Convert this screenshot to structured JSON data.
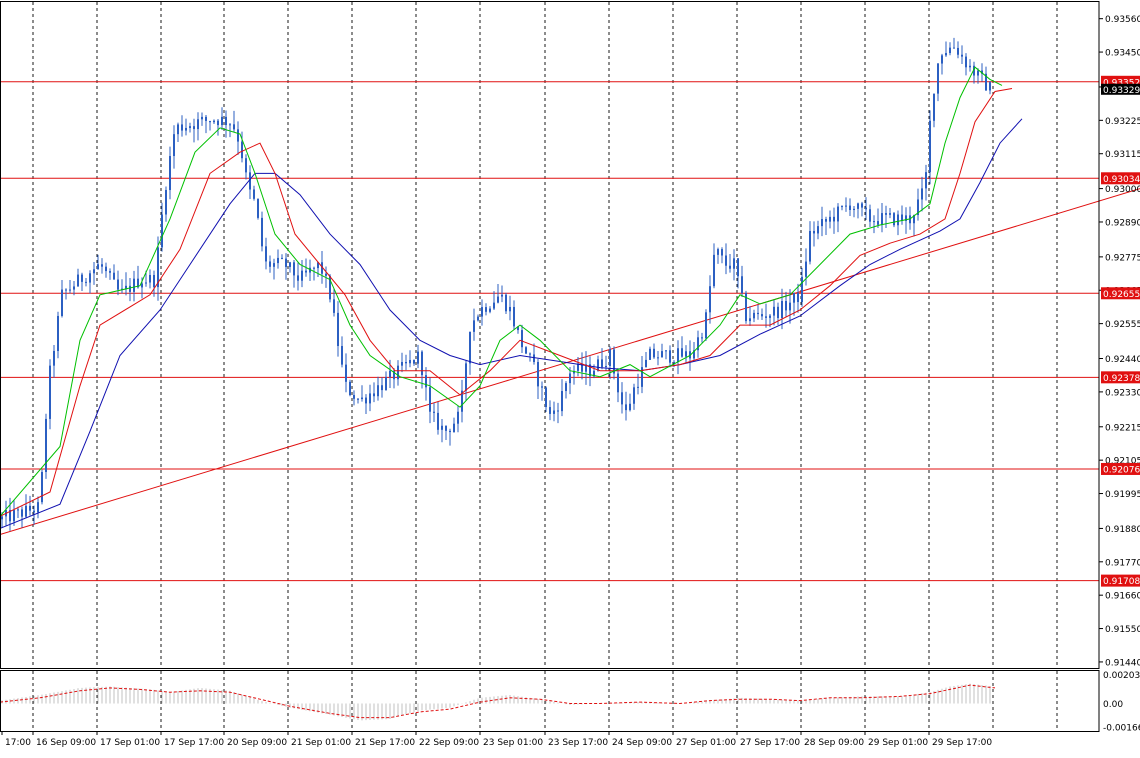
{
  "chart_data": {
    "type": "candlestick",
    "main_panel": {
      "ylim": [
        0.9142,
        0.93615
      ],
      "price_ticks": [
        "0.93560",
        "0.93450",
        "0.93335",
        "0.93225",
        "0.93115",
        "0.93000",
        "0.92890",
        "0.92775",
        "0.92665",
        "0.92555",
        "0.92440",
        "0.92330",
        "0.92215",
        "0.92105",
        "0.91995",
        "0.91880",
        "0.91770",
        "0.91660",
        "0.91550",
        "0.91440"
      ],
      "current_price": "0.93329",
      "levels": [
        "0.93352",
        "0.93034",
        "0.92655",
        "0.92378",
        "0.92076",
        "0.91708"
      ],
      "trendline": [
        [
          0,
          0.9186
        ],
        [
          1140,
          0.93
        ]
      ],
      "price_path": [
        [
          0,
          0.9191
        ],
        [
          40,
          0.9195
        ],
        [
          48,
          0.9235
        ],
        [
          62,
          0.9265
        ],
        [
          80,
          0.927
        ],
        [
          100,
          0.9275
        ],
        [
          120,
          0.9265
        ],
        [
          140,
          0.927
        ],
        [
          155,
          0.927
        ],
        [
          165,
          0.93
        ],
        [
          175,
          0.932
        ],
        [
          200,
          0.9322
        ],
        [
          215,
          0.9323
        ],
        [
          232,
          0.9322
        ],
        [
          240,
          0.9315
        ],
        [
          248,
          0.93
        ],
        [
          255,
          0.9295
        ],
        [
          265,
          0.9275
        ],
        [
          285,
          0.9275
        ],
        [
          300,
          0.927
        ],
        [
          320,
          0.9275
        ],
        [
          330,
          0.9265
        ],
        [
          345,
          0.9235
        ],
        [
          360,
          0.923
        ],
        [
          380,
          0.9235
        ],
        [
          400,
          0.924
        ],
        [
          420,
          0.9245
        ],
        [
          430,
          0.9225
        ],
        [
          445,
          0.922
        ],
        [
          460,
          0.9225
        ],
        [
          470,
          0.9255
        ],
        [
          480,
          0.926
        ],
        [
          500,
          0.9265
        ],
        [
          510,
          0.926
        ],
        [
          520,
          0.925
        ],
        [
          535,
          0.924
        ],
        [
          550,
          0.9225
        ],
        [
          560,
          0.923
        ],
        [
          570,
          0.924
        ],
        [
          590,
          0.924
        ],
        [
          610,
          0.9245
        ],
        [
          625,
          0.9225
        ],
        [
          635,
          0.9235
        ],
        [
          650,
          0.9245
        ],
        [
          670,
          0.9245
        ],
        [
          690,
          0.9245
        ],
        [
          705,
          0.9255
        ],
        [
          715,
          0.928
        ],
        [
          725,
          0.9275
        ],
        [
          735,
          0.9275
        ],
        [
          745,
          0.9258
        ],
        [
          760,
          0.9258
        ],
        [
          780,
          0.926
        ],
        [
          800,
          0.9265
        ],
        [
          810,
          0.9285
        ],
        [
          830,
          0.929
        ],
        [
          850,
          0.9295
        ],
        [
          870,
          0.929
        ],
        [
          890,
          0.929
        ],
        [
          910,
          0.929
        ],
        [
          925,
          0.93
        ],
        [
          932,
          0.933
        ],
        [
          940,
          0.9345
        ],
        [
          955,
          0.9347
        ],
        [
          965,
          0.9342
        ],
        [
          975,
          0.9338
        ],
        [
          990,
          0.9333
        ]
      ],
      "ma_fast": [
        [
          0,
          0.9192
        ],
        [
          60,
          0.9215
        ],
        [
          80,
          0.925
        ],
        [
          100,
          0.9265
        ],
        [
          140,
          0.9268
        ],
        [
          170,
          0.929
        ],
        [
          195,
          0.9312
        ],
        [
          220,
          0.932
        ],
        [
          240,
          0.9318
        ],
        [
          255,
          0.9305
        ],
        [
          275,
          0.9285
        ],
        [
          300,
          0.9275
        ],
        [
          330,
          0.927
        ],
        [
          350,
          0.9255
        ],
        [
          370,
          0.9245
        ],
        [
          400,
          0.9238
        ],
        [
          430,
          0.9235
        ],
        [
          460,
          0.9228
        ],
        [
          480,
          0.9235
        ],
        [
          500,
          0.925
        ],
        [
          520,
          0.9255
        ],
        [
          540,
          0.925
        ],
        [
          570,
          0.924
        ],
        [
          600,
          0.9238
        ],
        [
          630,
          0.9242
        ],
        [
          650,
          0.9238
        ],
        [
          690,
          0.9245
        ],
        [
          720,
          0.9255
        ],
        [
          740,
          0.9265
        ],
        [
          760,
          0.9262
        ],
        [
          790,
          0.9265
        ],
        [
          820,
          0.9275
        ],
        [
          850,
          0.9285
        ],
        [
          880,
          0.9288
        ],
        [
          910,
          0.929
        ],
        [
          930,
          0.9295
        ],
        [
          945,
          0.9315
        ],
        [
          960,
          0.933
        ],
        [
          975,
          0.934
        ],
        [
          990,
          0.9336
        ],
        [
          1002,
          0.9334
        ]
      ],
      "ma_mid": [
        [
          0,
          0.9192
        ],
        [
          50,
          0.92
        ],
        [
          80,
          0.9235
        ],
        [
          100,
          0.9255
        ],
        [
          150,
          0.9265
        ],
        [
          180,
          0.928
        ],
        [
          210,
          0.9305
        ],
        [
          240,
          0.9312
        ],
        [
          260,
          0.9315
        ],
        [
          275,
          0.9305
        ],
        [
          295,
          0.9285
        ],
        [
          320,
          0.9275
        ],
        [
          345,
          0.9265
        ],
        [
          370,
          0.925
        ],
        [
          395,
          0.924
        ],
        [
          430,
          0.924
        ],
        [
          460,
          0.9232
        ],
        [
          490,
          0.924
        ],
        [
          520,
          0.925
        ],
        [
          560,
          0.9245
        ],
        [
          600,
          0.924
        ],
        [
          640,
          0.924
        ],
        [
          680,
          0.9242
        ],
        [
          710,
          0.9245
        ],
        [
          740,
          0.9255
        ],
        [
          770,
          0.9255
        ],
        [
          800,
          0.926
        ],
        [
          830,
          0.9268
        ],
        [
          860,
          0.9278
        ],
        [
          890,
          0.9282
        ],
        [
          920,
          0.9285
        ],
        [
          945,
          0.929
        ],
        [
          960,
          0.9305
        ],
        [
          975,
          0.9322
        ],
        [
          995,
          0.9332
        ],
        [
          1012,
          0.9333
        ]
      ],
      "ma_slow": [
        [
          0,
          0.9188
        ],
        [
          60,
          0.9196
        ],
        [
          90,
          0.922
        ],
        [
          120,
          0.9245
        ],
        [
          160,
          0.926
        ],
        [
          190,
          0.9275
        ],
        [
          230,
          0.9295
        ],
        [
          255,
          0.9305
        ],
        [
          275,
          0.9305
        ],
        [
          300,
          0.9298
        ],
        [
          330,
          0.9285
        ],
        [
          360,
          0.9275
        ],
        [
          390,
          0.926
        ],
        [
          420,
          0.925
        ],
        [
          450,
          0.9245
        ],
        [
          480,
          0.9242
        ],
        [
          520,
          0.9245
        ],
        [
          560,
          0.9243
        ],
        [
          600,
          0.9241
        ],
        [
          640,
          0.924
        ],
        [
          680,
          0.9242
        ],
        [
          720,
          0.9245
        ],
        [
          760,
          0.9252
        ],
        [
          800,
          0.9258
        ],
        [
          840,
          0.9268
        ],
        [
          870,
          0.9275
        ],
        [
          900,
          0.928
        ],
        [
          940,
          0.9286
        ],
        [
          960,
          0.929
        ],
        [
          980,
          0.9302
        ],
        [
          1000,
          0.9315
        ],
        [
          1022,
          0.9323
        ]
      ]
    },
    "sub_panel": {
      "ticks": [
        "0.002035",
        "0.00",
        "-0.00166"
      ],
      "ylim": [
        -0.00195,
        0.0023
      ],
      "histogram": [
        [
          0,
          0.0002
        ],
        [
          40,
          0.0006
        ],
        [
          80,
          0.0011
        ],
        [
          110,
          0.0012
        ],
        [
          150,
          0.001
        ],
        [
          170,
          0.0008
        ],
        [
          200,
          0.0011
        ],
        [
          230,
          0.0009
        ],
        [
          260,
          0.0002
        ],
        [
          290,
          -0.0003
        ],
        [
          330,
          -0.0008
        ],
        [
          360,
          -0.0012
        ],
        [
          390,
          -0.0011
        ],
        [
          420,
          -0.0005
        ],
        [
          450,
          -0.0003
        ],
        [
          480,
          0.0004
        ],
        [
          510,
          0.0006
        ],
        [
          540,
          0.0003
        ],
        [
          570,
          -0.0001
        ],
        [
          600,
          0.0
        ],
        [
          640,
          0.0001
        ],
        [
          680,
          0.0
        ],
        [
          710,
          0.0002
        ],
        [
          740,
          0.0004
        ],
        [
          770,
          0.0003
        ],
        [
          800,
          0.0002
        ],
        [
          830,
          0.0004
        ],
        [
          860,
          0.0005
        ],
        [
          900,
          0.0005
        ],
        [
          930,
          0.0008
        ],
        [
          950,
          0.0012
        ],
        [
          970,
          0.0014
        ],
        [
          995,
          0.0012
        ]
      ],
      "signal": [
        [
          0,
          0.0001
        ],
        [
          40,
          0.0004
        ],
        [
          80,
          0.0009
        ],
        [
          110,
          0.0011
        ],
        [
          140,
          0.001
        ],
        [
          170,
          0.0008
        ],
        [
          200,
          0.0009
        ],
        [
          230,
          0.0008
        ],
        [
          260,
          0.0003
        ],
        [
          290,
          -0.0002
        ],
        [
          330,
          -0.0007
        ],
        [
          360,
          -0.001
        ],
        [
          390,
          -0.001
        ],
        [
          420,
          -0.0006
        ],
        [
          450,
          -0.0004
        ],
        [
          480,
          0.0001
        ],
        [
          510,
          0.0004
        ],
        [
          540,
          0.0003
        ],
        [
          570,
          0.0
        ],
        [
          600,
          0.0
        ],
        [
          640,
          0.0001
        ],
        [
          680,
          0.0
        ],
        [
          710,
          0.0002
        ],
        [
          740,
          0.0003
        ],
        [
          770,
          0.0003
        ],
        [
          800,
          0.0002
        ],
        [
          830,
          0.0004
        ],
        [
          860,
          0.0004
        ],
        [
          900,
          0.0005
        ],
        [
          930,
          0.0007
        ],
        [
          950,
          0.001
        ],
        [
          970,
          0.0013
        ],
        [
          995,
          0.0011
        ]
      ]
    },
    "x_labels": [
      "17:00",
      "16 Sep 09:00",
      "17 Sep 01:00",
      "17 Sep 17:00",
      "20 Sep 09:00",
      "21 Sep 01:00",
      "21 Sep 17:00",
      "22 Sep 09:00",
      "23 Sep 01:00",
      "23 Sep 17:00",
      "24 Sep 09:00",
      "27 Sep 01:00",
      "27 Sep 17:00",
      "28 Sep 09:00",
      "29 Sep 01:00",
      "29 Sep 17:00"
    ],
    "colors": {
      "background": "#ffffff",
      "grid": "#1a1a1a",
      "candle": "#2b5fc2",
      "level_line": "#e01010",
      "level_label_bg": "#e01010",
      "current_label_bg": "#000000",
      "trendline": "#e01010",
      "ma_fast": "#00c000",
      "ma_mid": "#e01010",
      "ma_slow": "#1010b0",
      "histogram": "#c0c0c0",
      "signal": "#e01010",
      "axis_text": "#000000"
    }
  }
}
